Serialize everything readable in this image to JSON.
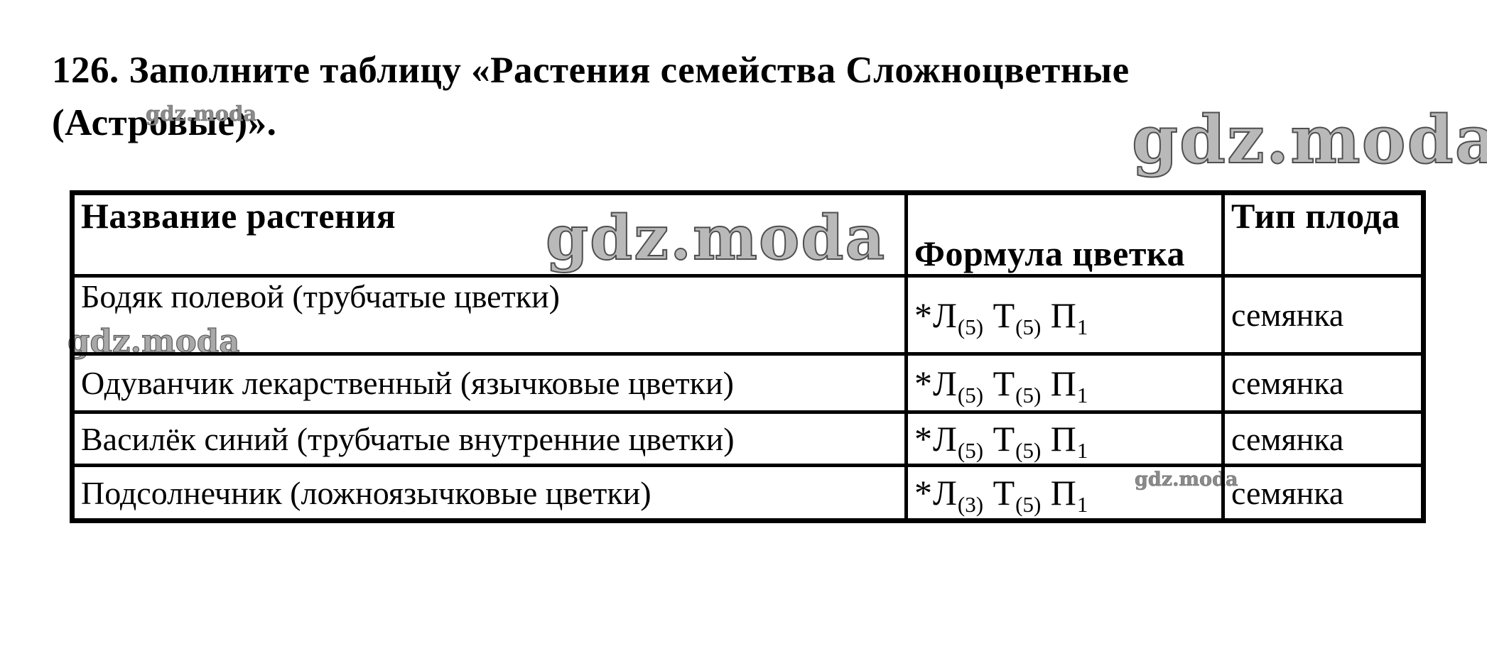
{
  "title": {
    "line1": "126. Заполните таблицу «Растения семейства Сложноцветные",
    "line2": "(Астровые)»."
  },
  "watermark": {
    "text": "gdz.moda",
    "color_small": "#8a8a8a",
    "color_large": "#9a9a9a"
  },
  "table": {
    "headers": {
      "plant_name": "Название растения",
      "flower_formula": "Формула цветка",
      "fruit_type": "Тип плода"
    },
    "rows": [
      {
        "name": "Бодяк полевой (трубчатые цветки)",
        "formula": "*Л_(5) Т_(5) П_1",
        "fruit": "семянка"
      },
      {
        "name": "Одуванчик лекарственный (язычковые цветки)",
        "formula": "*Л_(5) Т_(5) П_1",
        "fruit": "семянка"
      },
      {
        "name": "Василёк синий (трубчатые внутренние цветки)",
        "formula": "*Л_(5) Т_(5) П_1",
        "fruit": "семянка"
      },
      {
        "name": "Подсолнечник (ложноязычковые цветки)",
        "formula": "*Л_(3) Т_(5) П_1",
        "fruit": "семянка"
      }
    ]
  }
}
